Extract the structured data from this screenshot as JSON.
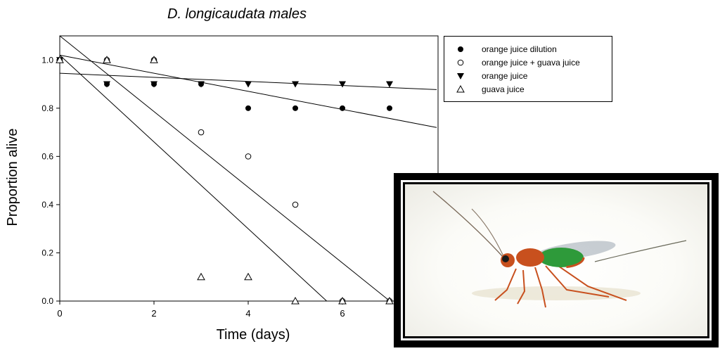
{
  "chart_data": {
    "type": "scatter",
    "title": "D. longicaudata males",
    "xlabel": "Time (days)",
    "ylabel": "Proportion alive",
    "xlim": [
      0,
      8
    ],
    "ylim": [
      0,
      1.1
    ],
    "x_ticks": [
      "0",
      "2",
      "4",
      "6"
    ],
    "y_ticks": [
      "0.0",
      "0.2",
      "0.4",
      "0.6",
      "0.8",
      "1.0"
    ],
    "grid": false,
    "legend_position": "outside-right",
    "series": [
      {
        "name": "orange juice dilution",
        "marker": "filled-circle",
        "x": [
          0,
          1,
          2,
          3,
          4,
          5,
          6,
          7
        ],
        "y": [
          1.0,
          0.9,
          0.9,
          0.9,
          0.8,
          0.8,
          0.8,
          0.8
        ],
        "fit": {
          "intercept": 1.02,
          "slope": -0.0375
        }
      },
      {
        "name": "orange juice + guava juice",
        "marker": "open-circle",
        "x": [
          0,
          1,
          2,
          3,
          4,
          5,
          6,
          7
        ],
        "y": [
          1.0,
          1.0,
          1.0,
          0.7,
          0.6,
          0.4,
          0.0,
          0.0
        ],
        "fit": {
          "intercept": 1.1,
          "slope": -0.157
        }
      },
      {
        "name": "orange juice",
        "marker": "filled-triangle-down",
        "x": [
          0,
          1,
          2,
          3,
          4,
          5,
          6,
          7
        ],
        "y": [
          1.0,
          0.9,
          0.9,
          0.9,
          0.9,
          0.9,
          0.9,
          0.9
        ],
        "fit": {
          "intercept": 0.945,
          "slope": -0.0085
        }
      },
      {
        "name": "guava juice",
        "marker": "open-triangle-up",
        "x": [
          0,
          1,
          2,
          3,
          4,
          5,
          6,
          7
        ],
        "y": [
          1.0,
          1.0,
          1.0,
          0.1,
          0.1,
          0.0,
          0.0,
          0.0
        ],
        "fit": {
          "intercept": 1.02,
          "slope": -0.18
        }
      }
    ]
  },
  "photo": {
    "subject": "parasitoid wasp",
    "body_color": "#c8501e",
    "abdomen_color": "#2e9a3a"
  }
}
